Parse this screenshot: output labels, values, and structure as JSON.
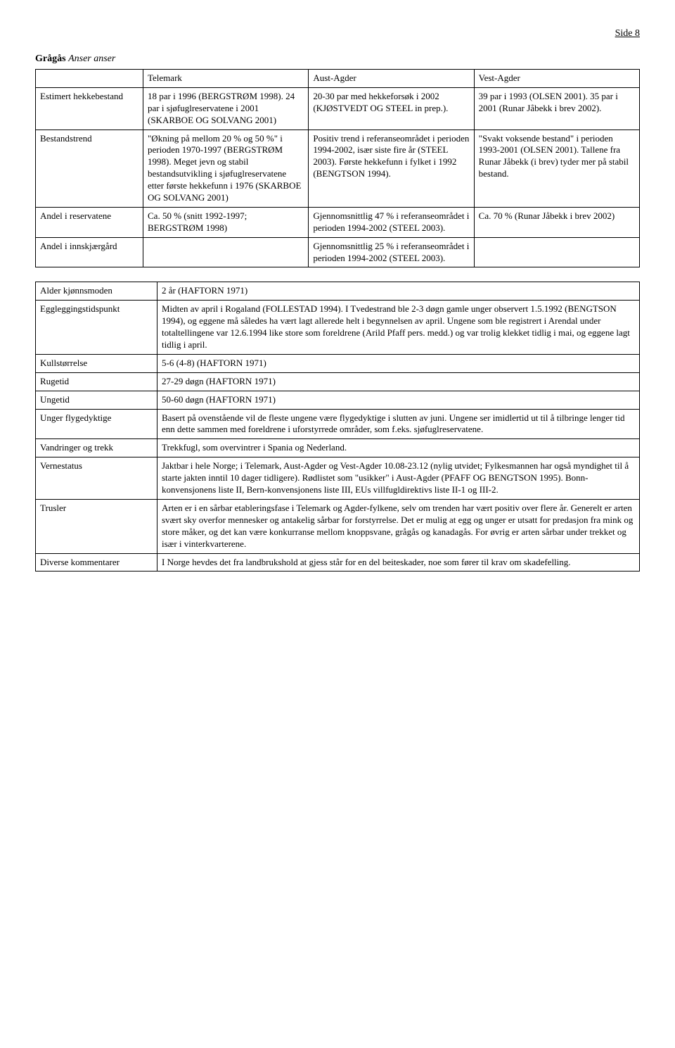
{
  "page_number": "Side 8",
  "species": {
    "common": "Grågås",
    "latin": "Anser anser"
  },
  "table1": {
    "col_headers": [
      "",
      "Telemark",
      "Aust-Agder",
      "Vest-Agder"
    ],
    "rows": [
      {
        "label": "Estimert hekkebestand",
        "telemark": "18 par i 1996 (BERGSTRØM 1998). 24 par i sjøfuglreservatene i 2001 (SKARBOE OG SOLVANG 2001)",
        "austagder": "20-30 par med hekkeforsøk i 2002 (KJØSTVEDT OG STEEL in prep.).",
        "vestagder": "39 par i 1993 (OLSEN 2001). 35 par i 2001 (Runar Jåbekk i brev 2002)."
      },
      {
        "label": "Bestandstrend",
        "telemark": "\"Økning på mellom 20 % og 50 %\" i perioden 1970-1997 (BERGSTRØM 1998). Meget jevn og stabil bestandsutvikling i sjøfuglreservatene etter første hekkefunn i 1976 (SKARBOE OG SOLVANG 2001)",
        "austagder": "Positiv trend i referanseområdet i perioden 1994-2002, især siste fire år (STEEL 2003). Første hekkefunn i fylket i 1992 (BENGTSON 1994).",
        "vestagder": "\"Svakt voksende bestand\" i perioden 1993-2001 (OLSEN 2001). Tallene fra Runar Jåbekk (i brev) tyder mer på stabil bestand."
      },
      {
        "label": "Andel i reservatene",
        "telemark": "Ca. 50 % (snitt 1992-1997; BERGSTRØM 1998)",
        "austagder": "Gjennomsnittlig 47 % i referanseområdet i perioden 1994-2002 (STEEL 2003).",
        "vestagder": "Ca. 70 % (Runar Jåbekk i brev 2002)"
      },
      {
        "label": "Andel i innskjærgård",
        "telemark": "",
        "austagder": "Gjennomsnittlig 25 % i referanseområdet i perioden 1994-2002 (STEEL 2003).",
        "vestagder": ""
      }
    ]
  },
  "table2": {
    "rows": [
      {
        "label": "Alder kjønnsmoden",
        "value": "2 år (HAFTORN 1971)"
      },
      {
        "label": "Eggleggingstidspunkt",
        "value": "Midten av april i Rogaland (FOLLESTAD 1994). I Tvedestrand ble 2-3 døgn gamle unger observert 1.5.1992 (BENGTSON 1994), og eggene må således ha vært lagt allerede helt i begynnelsen av april. Ungene som ble registrert i Arendal under totaltellingene var 12.6.1994 like store som foreldrene (Arild Pfaff pers. medd.) og var trolig klekket tidlig i mai, og eggene lagt tidlig i april."
      },
      {
        "label": "Kullstørrelse",
        "value": "5-6 (4-8) (HAFTORN 1971)"
      },
      {
        "label": "Rugetid",
        "value": "27-29 døgn (HAFTORN 1971)"
      },
      {
        "label": "Ungetid",
        "value": "50-60 døgn (HAFTORN 1971)"
      },
      {
        "label": "Unger flygedyktige",
        "value": "Basert på ovenstående vil de fleste ungene være flygedyktige i slutten av juni. Ungene ser imidlertid ut til å tilbringe lenger tid enn dette sammen med foreldrene i uforstyrrede områder, som f.eks. sjøfuglreservatene."
      },
      {
        "label": "Vandringer og trekk",
        "value": "Trekkfugl, som overvintrer i Spania og Nederland."
      },
      {
        "label": "Vernestatus",
        "value": "Jaktbar i hele Norge; i Telemark, Aust-Agder og Vest-Agder 10.08-23.12 (nylig utvidet; Fylkesmannen har også myndighet til å starte jakten inntil 10 dager tidligere). Rødlistet som \"usikker\" i Aust-Agder (PFAFF OG BENGTSON 1995). Bonn-konvensjonens liste II, Bern-konvensjonens liste III, EUs villfugldirektivs liste II-1 og III-2."
      },
      {
        "label": "Trusler",
        "value": "Arten er i en sårbar etableringsfase i Telemark og Agder-fylkene, selv om trenden har vært positiv over flere år. Generelt er arten svært sky overfor mennesker og antakelig sårbar for forstyrrelse. Det er mulig at egg og unger er utsatt for predasjon fra mink og store måker, og det kan være konkurranse mellom knoppsvane, grågås og kanadagås. For øvrig er arten sårbar under trekket og især i vinterkvarterene."
      },
      {
        "label": "Diverse kommentarer",
        "value": "I Norge hevdes det fra landbrukshold at gjess står for en del beiteskader, noe som fører til krav om skadefelling."
      }
    ]
  }
}
